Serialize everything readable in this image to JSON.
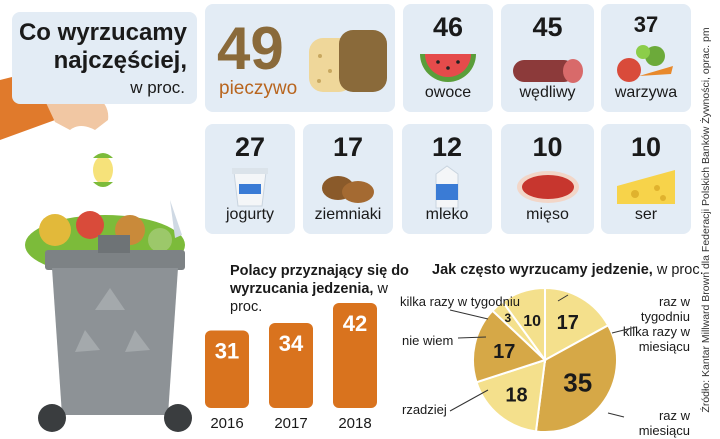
{
  "header": {
    "title_line1": "Co wyrzucamy",
    "title_line2": "najczęściej,",
    "unit": "w proc."
  },
  "tiles": [
    {
      "value": "49",
      "label": "pieczywo",
      "icon": "bread-icon"
    },
    {
      "value": "46",
      "label": "owoce",
      "icon": "watermelon-icon"
    },
    {
      "value": "45",
      "label": "wędliwy",
      "icon": "sausage-icon"
    },
    {
      "value": "37",
      "label": "warzywa",
      "icon": "vegetables-icon"
    },
    {
      "value": "27",
      "label": "jogurty",
      "icon": "yogurt-icon"
    },
    {
      "value": "17",
      "label": "ziemniaki",
      "icon": "potato-icon"
    },
    {
      "value": "12",
      "label": "mleko",
      "icon": "milk-carton-icon"
    },
    {
      "value": "10",
      "label": "mięso",
      "icon": "meat-icon"
    },
    {
      "value": "10",
      "label": "ser",
      "icon": "cheese-icon"
    }
  ],
  "bars_title": {
    "bold": "Polacy przyznający się do wyrzucania jedzenia,",
    "unit": " w proc."
  },
  "pie_title": {
    "bold": "Jak często wyrzucamy jedzenie,",
    "unit": " w proc."
  },
  "source": "Źródło: Kantar Millward Brown dla Federacji Polskich Banków Żywności, oprac. pm",
  "colors": {
    "tile_bg": "#e3ecf5",
    "orange": "#d9731e",
    "pie_light": "#f4e08c",
    "pie_dark": "#d6a847",
    "bread_brown": "#8a6a3a"
  },
  "chart_data": [
    {
      "type": "bar",
      "categories": [
        "Pieczywo",
        "Owoce",
        "Wędliwy",
        "Warzywa",
        "Jogurty",
        "Ziemniaki",
        "Mleko",
        "Mięso",
        "Ser"
      ],
      "values": [
        49,
        46,
        45,
        37,
        27,
        17,
        12,
        10,
        10
      ],
      "title": "Co wyrzucamy najczęściej, w proc."
    },
    {
      "type": "bar",
      "categories": [
        "2016",
        "2017",
        "2018"
      ],
      "values": [
        31,
        34,
        42
      ],
      "title": "Polacy przyznający się do wyrzucania jedzenia, w proc."
    },
    {
      "type": "pie",
      "title": "Jak często wyrzucamy jedzenie, w proc.",
      "labels": [
        "raz w tygodniu",
        "kilka razy w miesiącu",
        "raz w miesiącu",
        "rzadziej",
        "nie wiem",
        "kilka razy w tygodniu"
      ],
      "values": [
        17,
        35,
        18,
        17,
        3,
        10
      ]
    }
  ]
}
